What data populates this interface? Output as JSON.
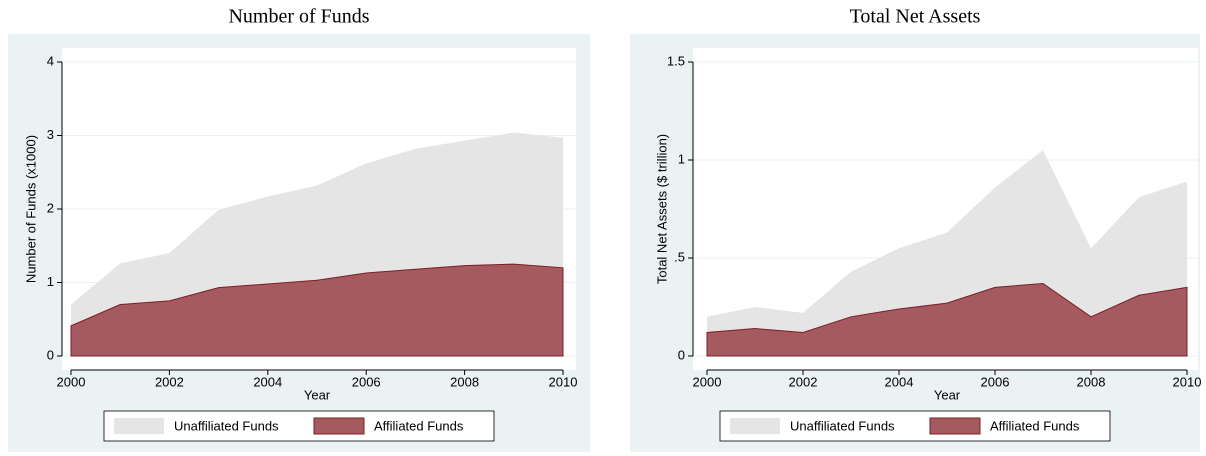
{
  "chart_data": [
    {
      "type": "area",
      "title": "Number of Funds",
      "xlabel": "Year",
      "ylabel": "Number of Funds (x1000)",
      "x": [
        2000,
        2001,
        2002,
        2003,
        2004,
        2005,
        2006,
        2007,
        2008,
        2009,
        2010
      ],
      "series": [
        {
          "name": "Unaffiliated Funds",
          "color": "#e5e5e5",
          "values": [
            0.7,
            1.26,
            1.4,
            1.99,
            2.17,
            2.32,
            2.62,
            2.82,
            2.93,
            3.04,
            2.97
          ]
        },
        {
          "name": "Affiliated Funds",
          "color": "#a45a5e",
          "values": [
            0.41,
            0.7,
            0.75,
            0.93,
            0.98,
            1.03,
            1.13,
            1.18,
            1.23,
            1.25,
            1.2
          ]
        }
      ],
      "xlim": [
        2000,
        2010
      ],
      "xticks": [
        2000,
        2002,
        2004,
        2006,
        2008,
        2010
      ],
      "ylim": [
        0,
        4
      ],
      "yticks": [
        0,
        1,
        2,
        3,
        4
      ],
      "grid": true,
      "legend": "bottom"
    },
    {
      "type": "area",
      "title": "Total Net Assets",
      "xlabel": "Year",
      "ylabel": "Total Net Assets ($ trillion)",
      "x": [
        2000,
        2001,
        2002,
        2003,
        2004,
        2005,
        2006,
        2007,
        2008,
        2009,
        2010
      ],
      "series": [
        {
          "name": "Unaffiliated Funds",
          "color": "#e5e5e5",
          "values": [
            0.2,
            0.25,
            0.22,
            0.43,
            0.55,
            0.63,
            0.86,
            1.05,
            0.55,
            0.81,
            0.89
          ]
        },
        {
          "name": "Affiliated Funds",
          "color": "#a45a5e",
          "values": [
            0.12,
            0.14,
            0.12,
            0.2,
            0.24,
            0.27,
            0.35,
            0.37,
            0.2,
            0.31,
            0.35
          ]
        }
      ],
      "xlim": [
        2000,
        2010
      ],
      "xticks": [
        2000,
        2002,
        2004,
        2006,
        2008,
        2010
      ],
      "ylim": [
        0,
        1.5
      ],
      "yticks": [
        0,
        {
          "value": 0.5,
          "label": ".5"
        },
        1,
        1.5
      ],
      "grid": true,
      "legend": "bottom"
    }
  ]
}
